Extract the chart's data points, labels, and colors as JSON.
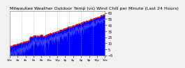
{
  "title": "Milwaukee Weather Outdoor Temp (vs) Wind Chill per Minute (Last 24 Hours)",
  "title_fontsize": 4.5,
  "background_color": "#f0f0f0",
  "plot_bg_color": "#ffffff",
  "line_color_temp": "#ff0000",
  "fill_color_wind": "#0000ff",
  "ylim": [
    -5,
    68
  ],
  "yticks": [
    -5,
    5,
    15,
    25,
    35,
    45,
    55,
    65
  ],
  "ytick_fontsize": 3.5,
  "xtick_fontsize": 3.0,
  "num_points": 1440,
  "grid_color": "#aaaaaa",
  "grid_style": "--",
  "grid_alpha": 0.7
}
